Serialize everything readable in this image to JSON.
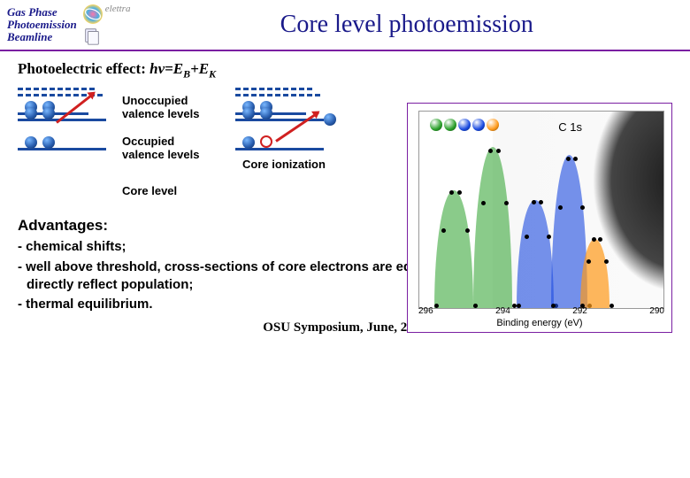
{
  "header": {
    "logo_lines": [
      "Gas Phase",
      "Photoemission",
      "Beamline"
    ],
    "logo_label": "elettra",
    "title": "Core level photoemission"
  },
  "equation": {
    "label": "Photoelectric effect: ",
    "formula": "hν=E_B+E_K"
  },
  "levels": {
    "unoccupied": "Unoccupied valence levels",
    "occupied": "Occupied valence levels",
    "core": "Core  level",
    "ionization": "Core ionization"
  },
  "spectrum": {
    "c1s": "C 1s",
    "xlabel": "Binding energy (eV)",
    "ticks": [
      "296",
      "294",
      "292",
      "290"
    ],
    "peaks": [
      {
        "left_pct": 6,
        "width_pct": 16,
        "height_pct": 60,
        "fill": "#2aa02a",
        "opacity": 0.55
      },
      {
        "left_pct": 22,
        "width_pct": 16,
        "height_pct": 82,
        "fill": "#2aa02a",
        "opacity": 0.55
      },
      {
        "left_pct": 40,
        "width_pct": 15,
        "height_pct": 55,
        "fill": "#1a4ae0",
        "opacity": 0.6
      },
      {
        "left_pct": 54,
        "width_pct": 15,
        "height_pct": 78,
        "fill": "#1a4ae0",
        "opacity": 0.6
      },
      {
        "left_pct": 66,
        "width_pct": 12,
        "height_pct": 35,
        "fill": "#ff9a1a",
        "opacity": 0.7
      }
    ],
    "molecule": [
      {
        "color": "#2aa02a"
      },
      {
        "color": "#2aa02a"
      },
      {
        "color": "#1a4ae0"
      },
      {
        "color": "#1a4ae0"
      },
      {
        "color": "#ff9a1a"
      }
    ]
  },
  "advantages": {
    "heading": "Advantages:",
    "b1": "- chemical shifts;",
    "b2": "- well above threshold, cross-sections of core electrons are equal, so the peak intensities (areas) directly reflect population;",
    "b3": "- thermal equilibrium."
  },
  "footer": "OSU Symposium, June, 2010",
  "colors": {
    "accent_purple": "#7a1fa2",
    "deep_blue": "#1a1a8a",
    "level_blue": "#1a4aa0",
    "red": "#d02020"
  }
}
